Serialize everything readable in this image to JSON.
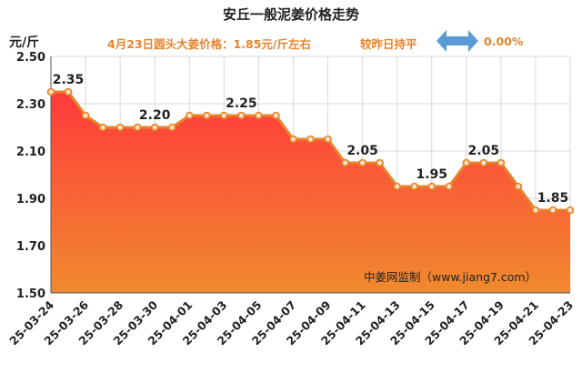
{
  "header": {
    "title": "安丘一般泥姜价格走势",
    "unit": "元/斤",
    "info": "4月23日圆头大姜价格：1.85元/斤左右",
    "compare": "较昨日持平",
    "change": "0.00%",
    "watermark": "中姜网监制（www.jiang7.com）"
  },
  "colors": {
    "accent": "#e8832a",
    "area_top": "#ff3b3b",
    "area_bottom": "#f08a2e",
    "line": "#e8832a",
    "arrow": "#5b9bd5"
  },
  "chart_data": {
    "type": "area",
    "title": "安丘一般泥姜价格走势",
    "ylabel": "元/斤",
    "ylim": [
      1.5,
      2.5
    ],
    "yticks": [
      "2.50",
      "2.30",
      "2.10",
      "1.90",
      "1.70",
      "1.50"
    ],
    "xtick_labels": [
      "25-03-24",
      "25-03-26",
      "25-03-28",
      "25-03-30",
      "25-04-01",
      "25-04-03",
      "25-04-05",
      "25-04-07",
      "25-04-09",
      "25-04-11",
      "25-04-13",
      "25-04-15",
      "25-04-17",
      "25-04-19",
      "25-04-21",
      "25-04-23"
    ],
    "grid": true,
    "series": [
      {
        "values": [
          2.35,
          2.35,
          2.25,
          2.2,
          2.2,
          2.2,
          2.2,
          2.2,
          2.25,
          2.25,
          2.25,
          2.25,
          2.25,
          2.25,
          2.15,
          2.15,
          2.15,
          2.05,
          2.05,
          2.05,
          1.95,
          1.95,
          1.95,
          1.95,
          2.05,
          2.05,
          2.05,
          1.95,
          1.85,
          1.85,
          1.85
        ]
      }
    ],
    "data_labels": [
      {
        "index": 1,
        "text": "2.35"
      },
      {
        "index": 6,
        "text": "2.20"
      },
      {
        "index": 11,
        "text": "2.25"
      },
      {
        "index": 18,
        "text": "2.05"
      },
      {
        "index": 22,
        "text": "1.95"
      },
      {
        "index": 25,
        "text": "2.05"
      },
      {
        "index": 29,
        "text": "1.85"
      }
    ]
  }
}
